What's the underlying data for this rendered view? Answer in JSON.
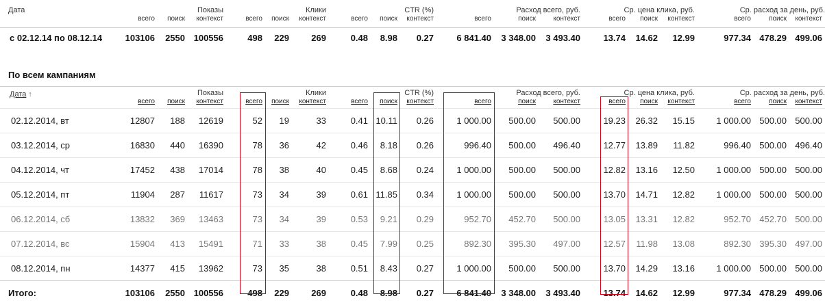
{
  "summary": {
    "groups": {
      "date": "Дата",
      "shows": "Показы",
      "clicks": "Клики",
      "ctr": "CTR (%)",
      "spend": "Расход всего, руб.",
      "cpc": "Ср. цена клика, руб.",
      "daily": "Ср. расход за день, руб."
    },
    "sub": {
      "all": "всего",
      "search": "поиск",
      "context": "контекст"
    },
    "row": [
      "с 02.12.14 по 08.12.14",
      "103106",
      "2550",
      "100556",
      "498",
      "229",
      "269",
      "0.48",
      "8.98",
      "0.27",
      "6 841.40",
      "3 348.00",
      "3 493.40",
      "13.74",
      "14.62",
      "12.99",
      "977.34",
      "478.29",
      "499.06"
    ]
  },
  "campaigns": {
    "title": "По всем кампаниям",
    "date_header": "Дата",
    "sort_arrow": "↑",
    "rows": [
      {
        "weekend": false,
        "cells": [
          "02.12.2014, вт",
          "12807",
          "188",
          "12619",
          "52",
          "19",
          "33",
          "0.41",
          "10.11",
          "0.26",
          "1 000.00",
          "500.00",
          "500.00",
          "19.23",
          "26.32",
          "15.15",
          "1 000.00",
          "500.00",
          "500.00"
        ]
      },
      {
        "weekend": false,
        "cells": [
          "03.12.2014, ср",
          "16830",
          "440",
          "16390",
          "78",
          "36",
          "42",
          "0.46",
          "8.18",
          "0.26",
          "996.40",
          "500.00",
          "496.40",
          "12.77",
          "13.89",
          "11.82",
          "996.40",
          "500.00",
          "496.40"
        ]
      },
      {
        "weekend": false,
        "cells": [
          "04.12.2014, чт",
          "17452",
          "438",
          "17014",
          "78",
          "38",
          "40",
          "0.45",
          "8.68",
          "0.24",
          "1 000.00",
          "500.00",
          "500.00",
          "12.82",
          "13.16",
          "12.50",
          "1 000.00",
          "500.00",
          "500.00"
        ]
      },
      {
        "weekend": false,
        "cells": [
          "05.12.2014, пт",
          "11904",
          "287",
          "11617",
          "73",
          "34",
          "39",
          "0.61",
          "11.85",
          "0.34",
          "1 000.00",
          "500.00",
          "500.00",
          "13.70",
          "14.71",
          "12.82",
          "1 000.00",
          "500.00",
          "500.00"
        ]
      },
      {
        "weekend": true,
        "cells": [
          "06.12.2014, сб",
          "13832",
          "369",
          "13463",
          "73",
          "34",
          "39",
          "0.53",
          "9.21",
          "0.29",
          "952.70",
          "452.70",
          "500.00",
          "13.05",
          "13.31",
          "12.82",
          "952.70",
          "452.70",
          "500.00"
        ]
      },
      {
        "weekend": true,
        "cells": [
          "07.12.2014, вс",
          "15904",
          "413",
          "15491",
          "71",
          "33",
          "38",
          "0.45",
          "7.99",
          "0.25",
          "892.30",
          "395.30",
          "497.00",
          "12.57",
          "11.98",
          "13.08",
          "892.30",
          "395.30",
          "497.00"
        ]
      },
      {
        "weekend": false,
        "cells": [
          "08.12.2014, пн",
          "14377",
          "415",
          "13962",
          "73",
          "35",
          "38",
          "0.51",
          "8.43",
          "0.27",
          "1 000.00",
          "500.00",
          "500.00",
          "13.70",
          "14.29",
          "13.16",
          "1 000.00",
          "500.00",
          "500.00"
        ]
      }
    ],
    "total": [
      "Итого:",
      "103106",
      "2550",
      "100556",
      "498",
      "229",
      "269",
      "0.48",
      "8.98",
      "0.27",
      "6 841.40",
      "3 348.00",
      "3 493.40",
      "13.74",
      "14.62",
      "12.99",
      "977.34",
      "478.29",
      "499.06"
    ]
  },
  "highlight_color": "#d0021b"
}
